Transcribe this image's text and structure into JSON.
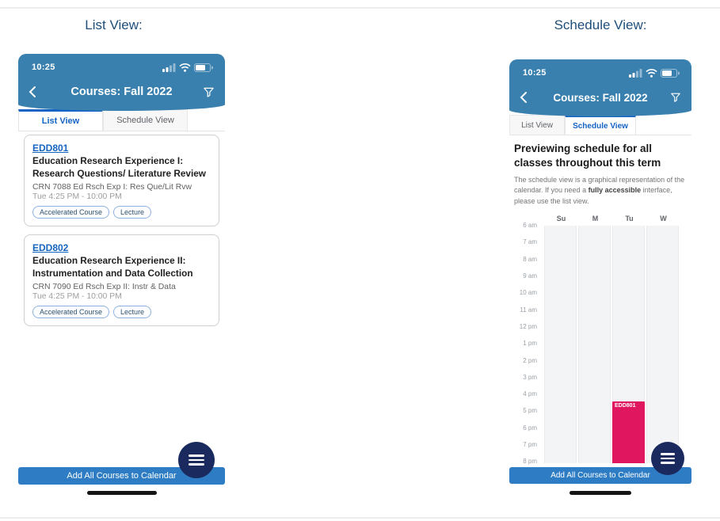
{
  "page": {
    "captions": {
      "left": "List View:",
      "right": "Schedule View:"
    },
    "colors": {
      "caption_blue": "#1F4E79",
      "header_blue": "#3A80AF",
      "accent_blue": "#1463C5",
      "link_blue": "#1565C0",
      "button_blue": "#2E7CC4",
      "event_pink": "#E0175E",
      "fab_navy": "#1A2A5E"
    }
  },
  "status_bar": {
    "time": "10:25"
  },
  "nav": {
    "title": "Courses: Fall 2022"
  },
  "tabs": {
    "list": "List View",
    "schedule": "Schedule View"
  },
  "footer": {
    "add_button": "Add All Courses to Calendar"
  },
  "list_view": {
    "courses": [
      {
        "code": "EDD801",
        "title": "Education Research Experience I: Research Questions/ Literature Review",
        "crn": "CRN 7088 Ed Rsch Exp I: Res Que/Lit Rvw",
        "time": "Tue 4:25 PM - 10:00 PM",
        "tags": [
          "Accelerated Course",
          "Lecture"
        ]
      },
      {
        "code": "EDD802",
        "title": "Education Research Experience II: Instrumentation and Data Collection",
        "crn": "CRN 7090 Ed Rsch Exp II: Instr & Data",
        "time": "Tue 4:25 PM - 10:00 PM",
        "tags": [
          "Accelerated Course",
          "Lecture"
        ]
      }
    ]
  },
  "schedule_view": {
    "heading": "Previewing schedule for all classes throughout this term",
    "desc_1": "The schedule view is a graphical representation of the calendar. If you need a ",
    "desc_bold": "fully accessible",
    "desc_2": " interface, please use the list view.",
    "days": [
      "Su",
      "M",
      "Tu",
      "W"
    ],
    "hours": [
      "6 am",
      "7 am",
      "8 am",
      "9 am",
      "10 am",
      "11 am",
      "12 pm",
      "1 pm",
      "2 pm",
      "3 pm",
      "4 pm",
      "5 pm",
      "6 pm",
      "7 pm",
      "8 pm"
    ],
    "event": {
      "label": "EDD801",
      "day": "Tu",
      "day_index": 2,
      "start": "4:25 PM",
      "end": "10:00 PM"
    }
  }
}
